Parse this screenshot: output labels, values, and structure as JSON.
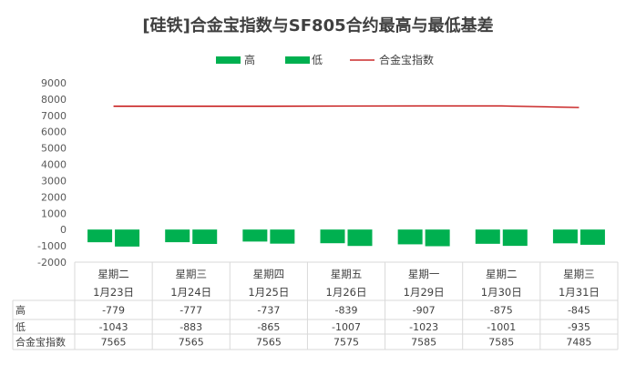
{
  "chart_data": {
    "type": "bar",
    "title": "[硅铁]合金宝指数与SF805合约最高与最低基差",
    "categories": [
      {
        "weekday": "星期二",
        "date": "1月23日"
      },
      {
        "weekday": "星期三",
        "date": "1月24日"
      },
      {
        "weekday": "星期四",
        "date": "1月25日"
      },
      {
        "weekday": "星期五",
        "date": "1月26日"
      },
      {
        "weekday": "星期一",
        "date": "1月29日"
      },
      {
        "weekday": "星期二",
        "date": "1月30日"
      },
      {
        "weekday": "星期三",
        "date": "1月31日"
      }
    ],
    "series": [
      {
        "name": "高",
        "type": "bar",
        "color": "#00B050",
        "values": [
          -779,
          -777,
          -737,
          -839,
          -907,
          -875,
          -845
        ]
      },
      {
        "name": "低",
        "type": "bar",
        "color": "#00B050",
        "values": [
          -1043,
          -883,
          -865,
          -1007,
          -1023,
          -1001,
          -935
        ]
      },
      {
        "name": "合金宝指数",
        "type": "line",
        "color": "#C00000",
        "values": [
          7565,
          7565,
          7565,
          7575,
          7585,
          7585,
          7485
        ]
      }
    ],
    "ylim": [
      -2000,
      9000
    ],
    "yticks": [
      9000,
      8000,
      7000,
      6000,
      5000,
      4000,
      3000,
      2000,
      1000,
      0,
      -1000,
      -2000
    ],
    "grid": false,
    "legend": "top",
    "data_table": true
  }
}
